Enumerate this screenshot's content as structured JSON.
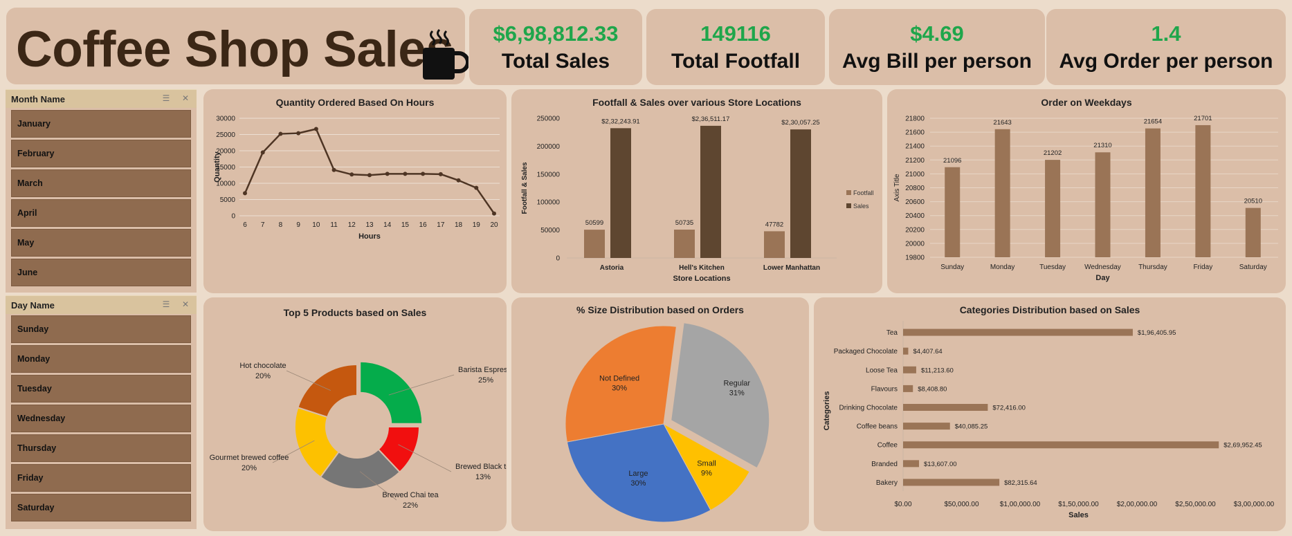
{
  "header": {
    "title": "Coffee Shop Sales",
    "cup_icon": "coffee-cup-icon"
  },
  "kpis": [
    {
      "value": "$6,98,812.33",
      "label": "Total Sales"
    },
    {
      "value": "149116",
      "label": "Total Footfall"
    },
    {
      "value": "$4.69",
      "label": "Avg Bill per person"
    },
    {
      "value": "1.4",
      "label": "Avg Order per person"
    }
  ],
  "slicers": {
    "month": {
      "title": "Month Name",
      "items": [
        "January",
        "February",
        "March",
        "April",
        "May",
        "June"
      ]
    },
    "day": {
      "title": "Day Name",
      "items": [
        "Sunday",
        "Monday",
        "Tuesday",
        "Wednesday",
        "Thursday",
        "Friday",
        "Saturday"
      ]
    }
  },
  "colors": {
    "kpi_value": "#1fa64b",
    "bar": "#9a7456",
    "bar_dark": "#5e4630",
    "line": "#4e3524"
  },
  "chart_data": [
    {
      "id": "hours",
      "type": "line",
      "title": "Quantity Ordered Based On Hours",
      "xlabel": "Hours",
      "ylabel": "Quantity",
      "x": [
        6,
        7,
        8,
        9,
        10,
        11,
        12,
        13,
        14,
        15,
        16,
        17,
        18,
        19,
        20
      ],
      "values": [
        6950,
        19500,
        25200,
        25400,
        26700,
        14100,
        12700,
        12500,
        12900,
        12900,
        12900,
        12800,
        10900,
        8600,
        700
      ],
      "ylim": [
        0,
        30000
      ],
      "yticks": [
        "0",
        "5000",
        "10000",
        "15000",
        "20000",
        "25000",
        "30000"
      ],
      "grid": true
    },
    {
      "id": "stores",
      "type": "bar",
      "title": "Footfall & Sales over various Store Locations",
      "xlabel": "Store Locations",
      "ylabel": "Footfall & Sales",
      "categories": [
        "Astoria",
        "Hell's Kitchen",
        "Lower Manhattan"
      ],
      "series": [
        {
          "name": "Footfall",
          "values": [
            50599,
            50735,
            47782
          ],
          "labels": [
            "50599",
            "50735",
            "47782"
          ]
        },
        {
          "name": "Sales",
          "values": [
            232243.91,
            236511.17,
            230057.25
          ],
          "labels": [
            "$2,32,243.91",
            "$2,36,511.17",
            "$2,30,057.25"
          ]
        }
      ],
      "ylim": [
        0,
        250000
      ],
      "yticks": [
        "0",
        "50000",
        "100000",
        "150000",
        "200000",
        "250000"
      ],
      "legend": "right"
    },
    {
      "id": "weekdays",
      "type": "bar",
      "title": "Order on Weekdays",
      "xlabel": "Day",
      "ylabel": "Axis Title",
      "categories": [
        "Sunday",
        "Monday",
        "Tuesday",
        "Wednesday",
        "Thursday",
        "Friday",
        "Saturday"
      ],
      "values": [
        21096,
        21643,
        21202,
        21310,
        21654,
        21701,
        20510
      ],
      "ylim": [
        19800,
        21800
      ],
      "yticks": [
        "19800",
        "20000",
        "20200",
        "20400",
        "20600",
        "20800",
        "21000",
        "21200",
        "21400",
        "21600",
        "21800"
      ],
      "grid": true
    },
    {
      "id": "products",
      "type": "pie",
      "title": "Top 5 Products based on Sales",
      "categories": [
        "Barista Espresso",
        "Brewed Black tea",
        "Brewed Chai tea",
        "Gourmet brewed coffee",
        "Hot chocolate"
      ],
      "values": [
        25,
        13,
        22,
        20,
        20
      ],
      "labels": [
        "25%",
        "13%",
        "22%",
        "20%",
        "20%"
      ],
      "colors": [
        "#05ac4b",
        "#f10f0f",
        "#767676",
        "#fdc100",
        "#c5580f"
      ]
    },
    {
      "id": "sizes",
      "type": "pie",
      "title": "% Size Distribution based on Orders",
      "categories": [
        "Regular",
        "Small",
        "Large",
        "Not Defined"
      ],
      "values": [
        31,
        9,
        30,
        30
      ],
      "labels": [
        "31%",
        "9%",
        "30%",
        "30%"
      ],
      "colors": [
        "#a5a5a5",
        "#ffc000",
        "#4472c4",
        "#ed7d31"
      ]
    },
    {
      "id": "categories",
      "type": "bar",
      "title": "Categories Distribution based on Sales",
      "xlabel": "Sales",
      "ylabel": "Categories",
      "categories": [
        "Tea",
        "Packaged Chocolate",
        "Loose Tea",
        "Flavours",
        "Drinking Chocolate",
        "Coffee beans",
        "Coffee",
        "Branded",
        "Bakery"
      ],
      "values": [
        196405.95,
        4407.64,
        11213.6,
        8408.8,
        72416.0,
        40085.25,
        269952.45,
        13607.0,
        82315.64
      ],
      "labels": [
        "$1,96,405.95",
        "$4,407.64",
        "$11,213.60",
        "$8,408.80",
        "$72,416.00",
        "$40,085.25",
        "$2,69,952.45",
        "$13,607.00",
        "$82,315.64"
      ],
      "xlim": [
        0,
        300000
      ],
      "xticks": [
        "$0.00",
        "$50,000.00",
        "$1,00,000.00",
        "$1,50,000.00",
        "$2,00,000.00",
        "$2,50,000.00",
        "$3,00,000.00"
      ]
    }
  ]
}
